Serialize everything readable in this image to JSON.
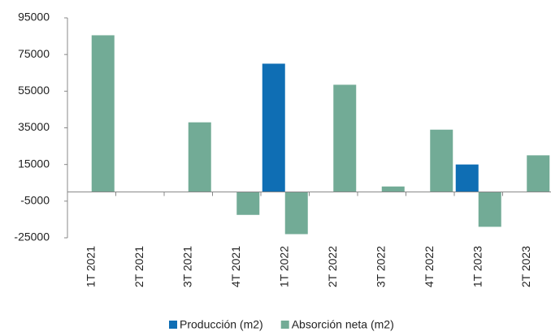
{
  "chart_data": {
    "type": "bar",
    "categories": [
      "1T 2021",
      "2T 2021",
      "3T 2021",
      "4T 2021",
      "1T 2022",
      "2T 2022",
      "3T 2022",
      "4T 2022",
      "1T 2023",
      "2T 2023"
    ],
    "series": [
      {
        "name": "Producción (m2)",
        "color": "#0f6eb4",
        "values": [
          0,
          0,
          0,
          0,
          70000,
          0,
          0,
          0,
          15000,
          0
        ]
      },
      {
        "name": "Absorción neta (m2)",
        "color": "#72ab96",
        "values": [
          85500,
          0,
          38000,
          -12500,
          -23000,
          58500,
          3000,
          34000,
          -19000,
          20000
        ]
      }
    ],
    "ylim": [
      -25000,
      95000
    ],
    "yticks": [
      -25000,
      -5000,
      15000,
      35000,
      55000,
      75000,
      95000
    ],
    "legend": "bottom"
  }
}
